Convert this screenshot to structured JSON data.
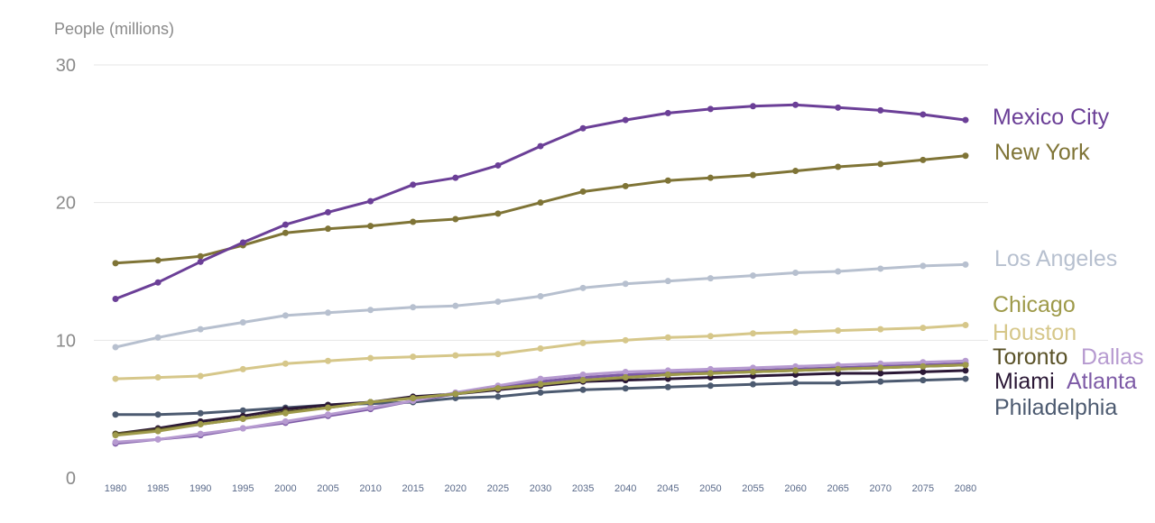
{
  "chart_data": {
    "type": "line",
    "ylabel": "People (millions)",
    "ylim": [
      0,
      30
    ],
    "yticks": [
      "0",
      "10",
      "20",
      "30"
    ],
    "grid": true,
    "legend": "direct labels at line ends (right)",
    "x": [
      "1980",
      "1985",
      "1990",
      "1995",
      "2000",
      "2005",
      "2010",
      "2015",
      "2020",
      "2025",
      "2030",
      "2035",
      "2040",
      "2045",
      "2050",
      "2055",
      "2060",
      "2065",
      "2070",
      "2075",
      "2080"
    ],
    "series": [
      {
        "name": "Mexico City",
        "color": "#6b3f97",
        "values": [
          13.0,
          14.2,
          15.7,
          17.1,
          18.4,
          19.3,
          20.1,
          21.3,
          21.8,
          22.7,
          24.1,
          25.4,
          26.0,
          26.5,
          26.8,
          27.0,
          27.1,
          26.9,
          26.7,
          26.4,
          26.0
        ]
      },
      {
        "name": "New York",
        "color": "#7f7436",
        "values": [
          15.6,
          15.8,
          16.1,
          16.9,
          17.8,
          18.1,
          18.3,
          18.6,
          18.8,
          19.2,
          20.0,
          20.8,
          21.2,
          21.6,
          21.8,
          22.0,
          22.3,
          22.6,
          22.8,
          23.1,
          23.4
        ]
      },
      {
        "name": "Los Angeles",
        "color": "#b7c0cf",
        "values": [
          9.5,
          10.2,
          10.8,
          11.3,
          11.8,
          12.0,
          12.2,
          12.4,
          12.5,
          12.8,
          13.2,
          13.8,
          14.1,
          14.3,
          14.5,
          14.7,
          14.9,
          15.0,
          15.2,
          15.4,
          15.5
        ]
      },
      {
        "name": "Houston",
        "color": "#d6c78a",
        "values": [
          7.2,
          7.3,
          7.4,
          7.9,
          8.3,
          8.5,
          8.7,
          8.8,
          8.9,
          9.0,
          9.4,
          9.8,
          10.0,
          10.2,
          10.3,
          10.5,
          10.6,
          10.7,
          10.8,
          10.9,
          11.1
        ]
      },
      {
        "name": "Chicago",
        "color": "#9e9a4a",
        "values": [
          3.1,
          3.4,
          3.9,
          4.3,
          4.7,
          5.1,
          5.5,
          5.8,
          6.1,
          6.5,
          6.8,
          7.1,
          7.3,
          7.5,
          7.6,
          7.7,
          7.8,
          7.9,
          8.0,
          8.1,
          8.2
        ]
      },
      {
        "name": "Toronto",
        "color": "#5a5228",
        "values": [
          3.2,
          3.5,
          3.9,
          4.3,
          4.8,
          5.1,
          5.5,
          5.8,
          6.1,
          6.5,
          6.8,
          7.1,
          7.3,
          7.5,
          7.6,
          7.7,
          7.8,
          7.9,
          8.0,
          8.1,
          8.2
        ]
      },
      {
        "name": "Dallas",
        "color": "#b69ad0",
        "values": [
          2.6,
          2.8,
          3.2,
          3.6,
          4.1,
          4.6,
          5.1,
          5.6,
          6.2,
          6.7,
          7.2,
          7.5,
          7.7,
          7.8,
          7.9,
          8.0,
          8.1,
          8.2,
          8.3,
          8.4,
          8.5
        ]
      },
      {
        "name": "Atlanta",
        "color": "#7d5aa6",
        "values": [
          2.5,
          2.8,
          3.1,
          3.6,
          4.0,
          4.5,
          5.0,
          5.6,
          6.1,
          6.6,
          7.0,
          7.3,
          7.5,
          7.6,
          7.7,
          7.8,
          7.9,
          8.0,
          8.1,
          8.2,
          8.3
        ]
      },
      {
        "name": "Miami",
        "color": "#2b1836",
        "values": [
          3.2,
          3.6,
          4.1,
          4.5,
          5.0,
          5.3,
          5.5,
          5.9,
          6.1,
          6.4,
          6.7,
          7.0,
          7.1,
          7.2,
          7.3,
          7.4,
          7.5,
          7.6,
          7.6,
          7.7,
          7.8
        ]
      },
      {
        "name": "Philadelphia",
        "color": "#4c5a70",
        "values": [
          4.6,
          4.6,
          4.7,
          4.9,
          5.1,
          5.3,
          5.4,
          5.5,
          5.8,
          5.9,
          6.2,
          6.4,
          6.5,
          6.6,
          6.7,
          6.8,
          6.9,
          6.9,
          7.0,
          7.1,
          7.2
        ]
      }
    ]
  }
}
